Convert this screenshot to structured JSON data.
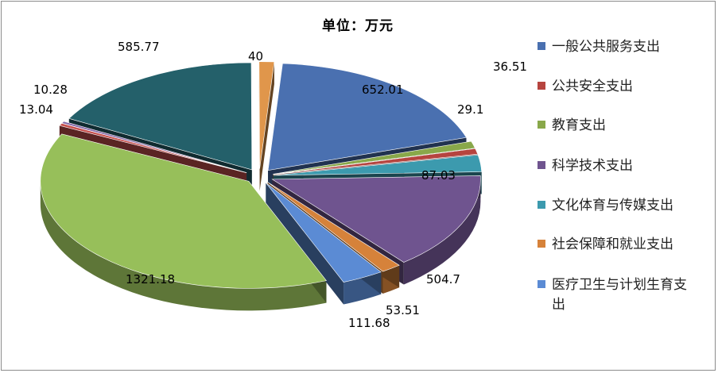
{
  "chart_data": {
    "type": "pie",
    "subtitle": "单位：万元",
    "three_d": true,
    "exploded": true,
    "legend_position": "right",
    "slices": [
      {
        "name": "一般公共服务支出",
        "value": 652.01,
        "color": "#4a70b0"
      },
      {
        "name": "公共安全支出",
        "value": 29.1,
        "color": "#b6443f"
      },
      {
        "name": "教育支出",
        "value": 36.51,
        "color": "#89a84a"
      },
      {
        "name": "科学技术支出",
        "value": 504.7,
        "color": "#6f548f"
      },
      {
        "name": "文化体育与传媒支出",
        "value": 87.03,
        "color": "#3c9aae"
      },
      {
        "name": "社会保障和就业支出",
        "value": 53.51,
        "color": "#d6823a"
      },
      {
        "name": "医疗卫生与计划生育支出",
        "value": 111.68,
        "color": "#5b8bd4"
      },
      {
        "name": "",
        "value": 1321.18,
        "color": "#97bf5a"
      },
      {
        "name": "",
        "value": 13.04,
        "color": "#c7504d"
      },
      {
        "name": "",
        "value": 10.28,
        "color": "#8469a9"
      },
      {
        "name": "",
        "value": 585.77,
        "color": "#24606a"
      },
      {
        "name": "",
        "value": 40,
        "color": "#e0964b"
      }
    ]
  }
}
